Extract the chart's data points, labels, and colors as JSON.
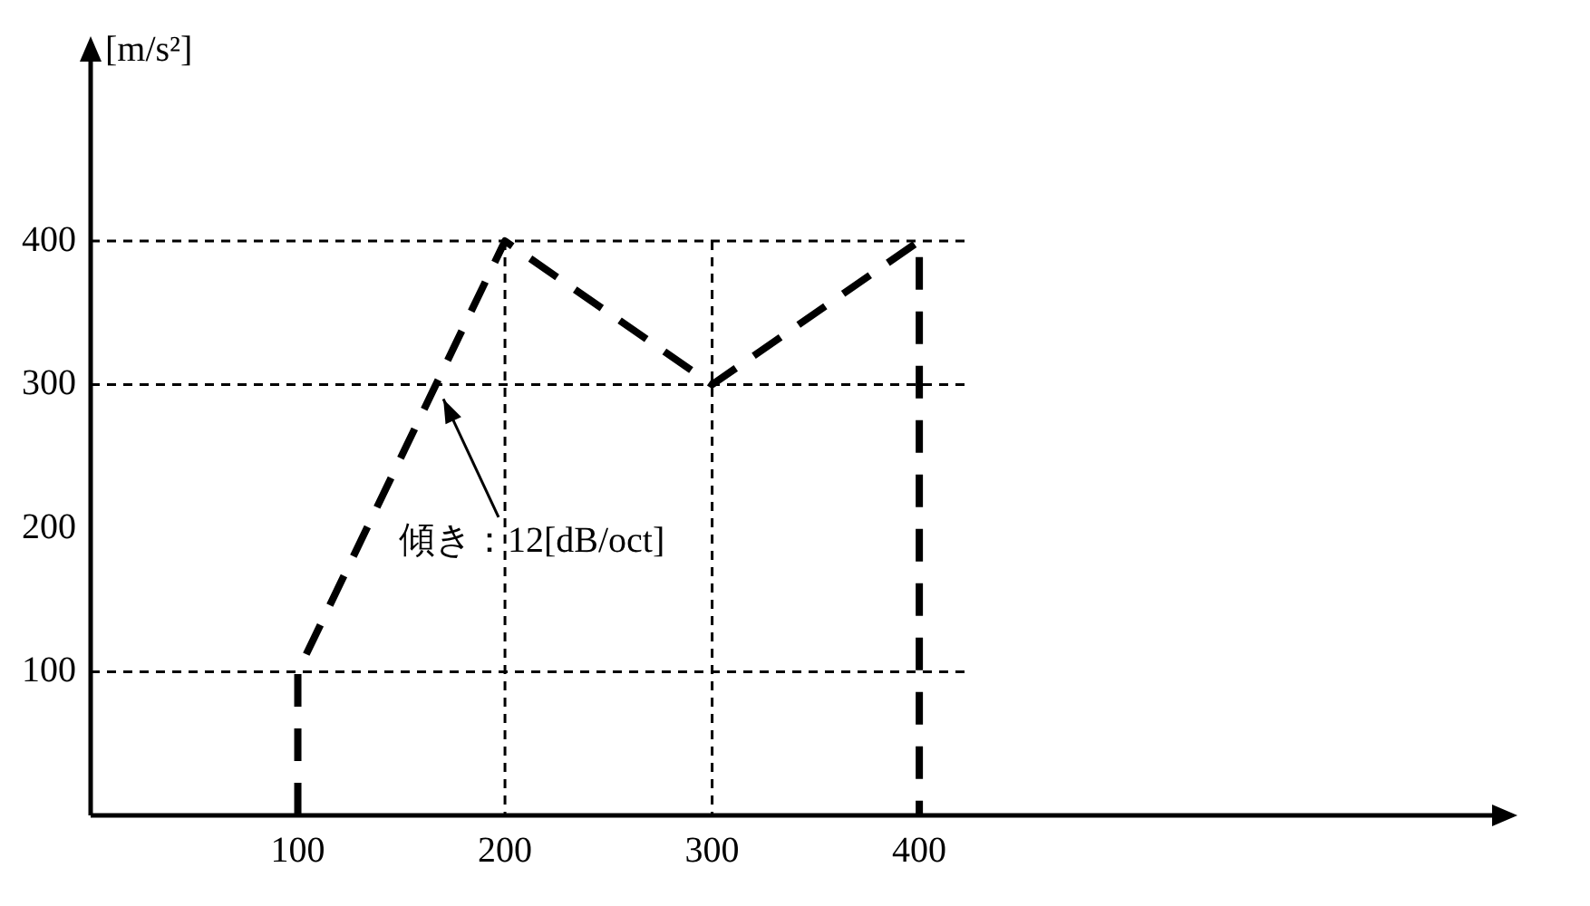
{
  "chart_data": {
    "type": "line",
    "ylabel": "[m/s²]",
    "xlim": [
      0,
      680
    ],
    "ylim": [
      0,
      530
    ],
    "xticks": [
      100,
      200,
      300,
      400
    ],
    "yticks": [
      100,
      200,
      300,
      400
    ],
    "grid": false,
    "legend": false,
    "marker": "none",
    "line_style": "dashed",
    "series": [
      {
        "color": "#000000",
        "x": [
          100,
          100,
          200,
          300,
          400,
          400
        ],
        "values": [
          0,
          100,
          400,
          300,
          400,
          0
        ]
      }
    ],
    "ref_lines": [
      {
        "axis": "y",
        "value": 100,
        "color": "#000000",
        "line_style": "dashed"
      },
      {
        "axis": "y",
        "value": 300,
        "color": "#000000",
        "line_style": "dashed"
      },
      {
        "axis": "y",
        "value": 400,
        "color": "#000000",
        "line_style": "dashed"
      },
      {
        "axis": "x",
        "value": 200,
        "color": "#000000",
        "line_style": "dashed"
      },
      {
        "axis": "x",
        "value": 300,
        "color": "#000000",
        "line_style": "dashed"
      }
    ],
    "annotations": [
      "傾き：12[dB/oct]"
    ]
  }
}
